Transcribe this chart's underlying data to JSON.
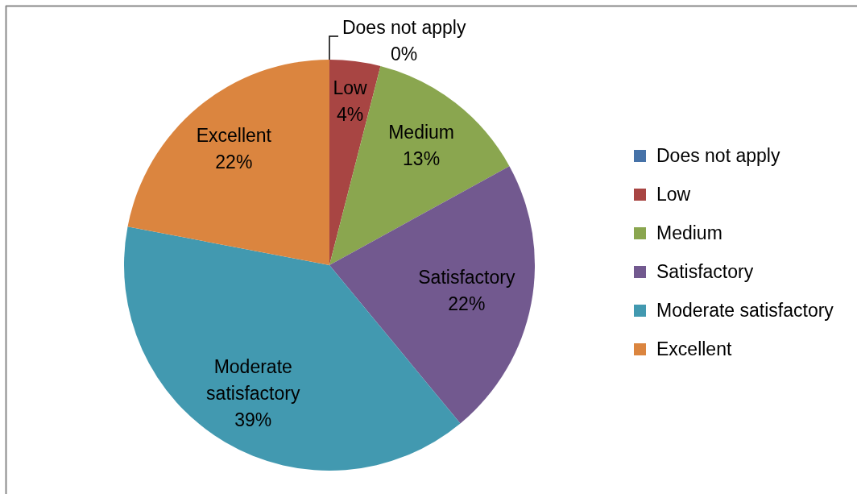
{
  "chart_data": {
    "type": "pie",
    "categories": [
      "Does not apply",
      "Low",
      "Medium",
      "Satisfactory",
      "Moderate satisfactory",
      "Excellent"
    ],
    "values": [
      0,
      4,
      13,
      22,
      39,
      22
    ],
    "colors": [
      "#4672a8",
      "#a84543",
      "#8aa64f",
      "#72598f",
      "#4299b0",
      "#db853f"
    ],
    "value_labels": [
      "0%",
      "4%",
      "13%",
      "22%",
      "39%",
      "22%"
    ],
    "legend": "right"
  }
}
